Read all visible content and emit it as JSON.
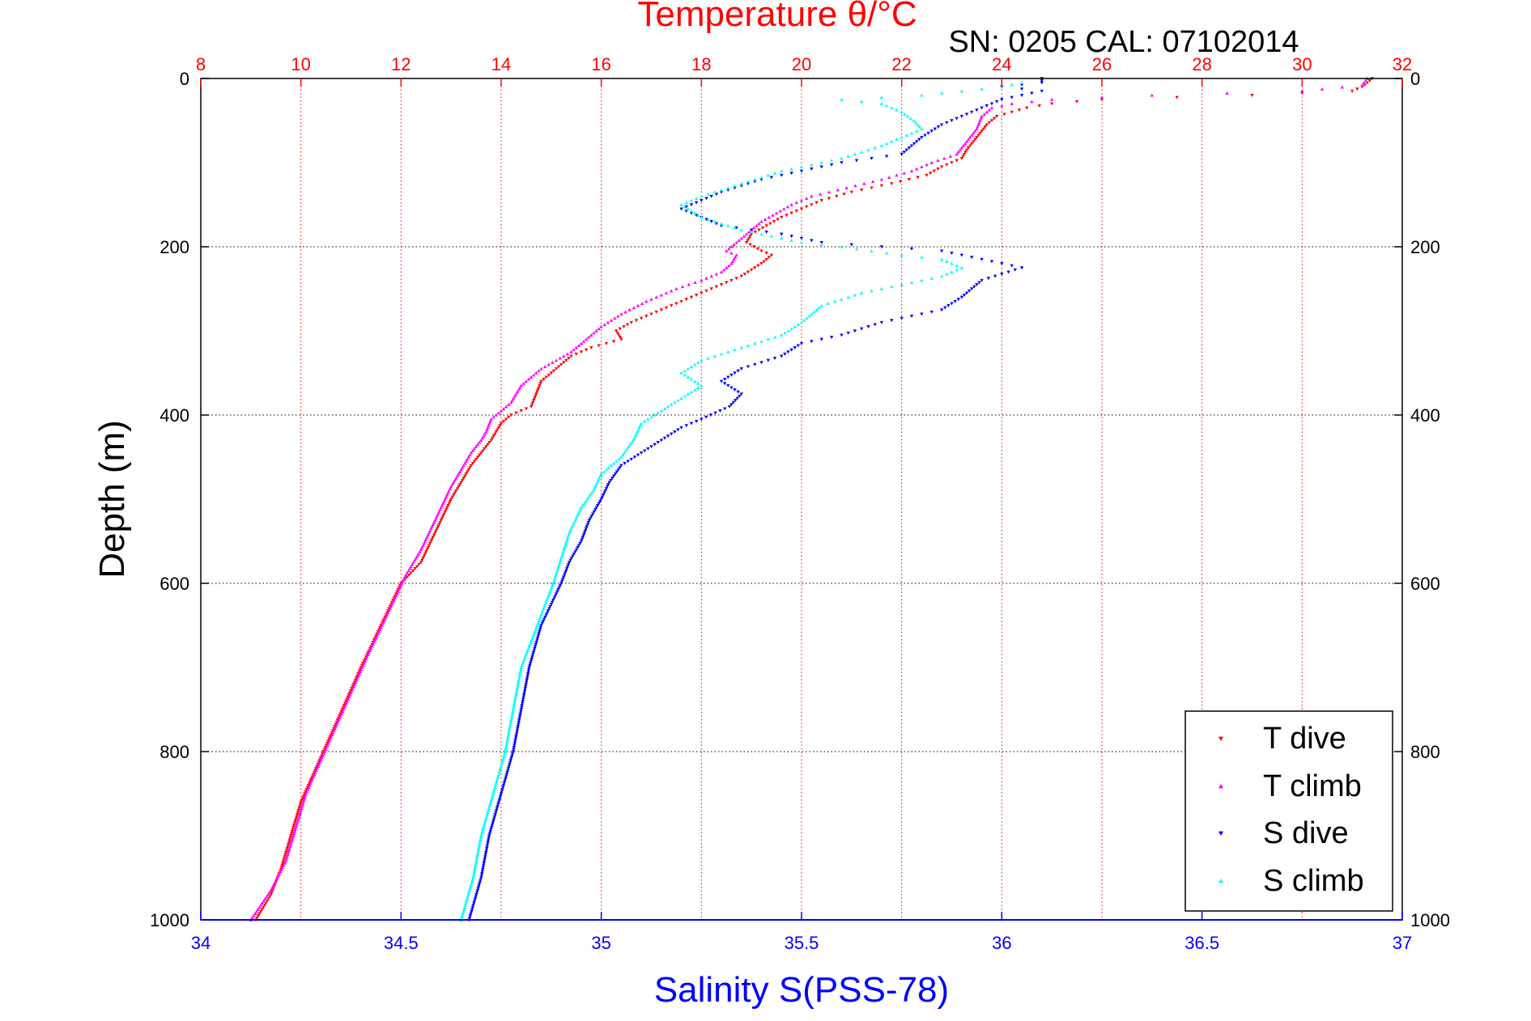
{
  "chart_data": {
    "type": "scatter",
    "title": "Temperature θ/°C",
    "subtitle": "SN: 0205  CAL: 07102014",
    "ylabel": "Depth (m)",
    "xlabel_bottom": "Salinity S(PSS-78)",
    "xlabel_top": "Temperature θ/°C",
    "y_reversed": true,
    "ylim": [
      0,
      1000
    ],
    "y_ticks": [
      0,
      200,
      400,
      600,
      800,
      1000
    ],
    "x_top": {
      "lim": [
        8,
        32
      ],
      "ticks": [
        8,
        10,
        12,
        14,
        16,
        18,
        20,
        22,
        24,
        26,
        28,
        30,
        32
      ],
      "color": "#ff0000"
    },
    "x_bottom": {
      "lim": [
        34,
        37
      ],
      "ticks": [
        "34",
        "34.5",
        "35",
        "35.5",
        "36",
        "36.5",
        "37"
      ],
      "color": "#0000ff"
    },
    "grid": true,
    "legend_position": "bottom-right",
    "series": [
      {
        "name": "T dive",
        "axis": "top",
        "color": "#ff0000",
        "marker": "triangle-down",
        "points": [
          [
            31.4,
            0
          ],
          [
            31.3,
            5
          ],
          [
            31.2,
            10
          ],
          [
            31.0,
            15
          ],
          [
            29.0,
            20
          ],
          [
            26.0,
            25
          ],
          [
            25.0,
            30
          ],
          [
            24.5,
            35
          ],
          [
            24.2,
            40
          ],
          [
            23.9,
            45
          ],
          [
            23.7,
            55
          ],
          [
            23.5,
            70
          ],
          [
            23.3,
            85
          ],
          [
            23.2,
            95
          ],
          [
            22.8,
            105
          ],
          [
            22.5,
            115
          ],
          [
            21.8,
            125
          ],
          [
            21.0,
            135
          ],
          [
            20.4,
            145
          ],
          [
            20.0,
            155
          ],
          [
            19.6,
            165
          ],
          [
            19.3,
            175
          ],
          [
            19.0,
            185
          ],
          [
            18.9,
            195
          ],
          [
            19.2,
            205
          ],
          [
            19.4,
            210
          ],
          [
            19.2,
            220
          ],
          [
            18.8,
            235
          ],
          [
            18.2,
            250
          ],
          [
            17.8,
            260
          ],
          [
            17.2,
            275
          ],
          [
            16.6,
            290
          ],
          [
            16.3,
            300
          ],
          [
            16.4,
            310
          ],
          [
            15.8,
            320
          ],
          [
            15.4,
            330
          ],
          [
            15.2,
            340
          ],
          [
            15.0,
            350
          ],
          [
            14.8,
            360
          ],
          [
            14.7,
            375
          ],
          [
            14.6,
            390
          ],
          [
            14.2,
            400
          ],
          [
            14.0,
            410
          ],
          [
            13.9,
            420
          ],
          [
            13.8,
            430
          ],
          [
            13.6,
            445
          ],
          [
            13.4,
            460
          ],
          [
            13.2,
            480
          ],
          [
            13.0,
            500
          ],
          [
            12.8,
            525
          ],
          [
            12.6,
            550
          ],
          [
            12.4,
            575
          ],
          [
            12.0,
            600
          ],
          [
            11.6,
            650
          ],
          [
            11.2,
            700
          ],
          [
            10.9,
            740
          ],
          [
            10.6,
            780
          ],
          [
            10.3,
            820
          ],
          [
            10.0,
            860
          ],
          [
            9.8,
            900
          ],
          [
            9.6,
            940
          ],
          [
            9.4,
            970
          ],
          [
            9.1,
            1000
          ]
        ]
      },
      {
        "name": "T climb",
        "axis": "top",
        "color": "#ff00ff",
        "marker": "triangle-up",
        "points": [
          [
            31.3,
            0
          ],
          [
            31.2,
            8
          ],
          [
            30.0,
            15
          ],
          [
            27.0,
            20
          ],
          [
            25.0,
            25
          ],
          [
            24.2,
            30
          ],
          [
            23.8,
            35
          ],
          [
            23.6,
            45
          ],
          [
            23.5,
            60
          ],
          [
            23.3,
            75
          ],
          [
            23.1,
            90
          ],
          [
            22.6,
            100
          ],
          [
            22.2,
            110
          ],
          [
            21.6,
            120
          ],
          [
            20.9,
            130
          ],
          [
            20.2,
            140
          ],
          [
            19.8,
            150
          ],
          [
            19.5,
            160
          ],
          [
            19.2,
            170
          ],
          [
            19.0,
            180
          ],
          [
            18.8,
            190
          ],
          [
            18.6,
            200
          ],
          [
            18.5,
            205
          ],
          [
            18.7,
            210
          ],
          [
            18.6,
            220
          ],
          [
            18.4,
            230
          ],
          [
            18.0,
            240
          ],
          [
            17.5,
            250
          ],
          [
            16.9,
            265
          ],
          [
            16.4,
            280
          ],
          [
            16.0,
            295
          ],
          [
            15.8,
            305
          ],
          [
            15.6,
            315
          ],
          [
            15.4,
            325
          ],
          [
            15.1,
            335
          ],
          [
            14.8,
            345
          ],
          [
            14.6,
            355
          ],
          [
            14.4,
            365
          ],
          [
            14.3,
            375
          ],
          [
            14.2,
            385
          ],
          [
            14.0,
            395
          ],
          [
            13.8,
            405
          ],
          [
            13.7,
            420
          ],
          [
            13.6,
            430
          ],
          [
            13.4,
            445
          ],
          [
            13.2,
            465
          ],
          [
            13.0,
            485
          ],
          [
            12.8,
            510
          ],
          [
            12.6,
            535
          ],
          [
            12.4,
            560
          ],
          [
            12.1,
            590
          ],
          [
            11.7,
            640
          ],
          [
            11.3,
            690
          ],
          [
            11.0,
            730
          ],
          [
            10.7,
            770
          ],
          [
            10.4,
            810
          ],
          [
            10.1,
            850
          ],
          [
            9.9,
            890
          ],
          [
            9.7,
            930
          ],
          [
            9.4,
            965
          ],
          [
            9.0,
            1000
          ]
        ]
      },
      {
        "name": "S dive",
        "axis": "bottom",
        "color": "#0000ff",
        "marker": "triangle-down",
        "points": [
          [
            36.1,
            0
          ],
          [
            36.1,
            5
          ],
          [
            36.0,
            10
          ],
          [
            36.1,
            15
          ],
          [
            36.05,
            20
          ],
          [
            36.0,
            25
          ],
          [
            35.95,
            35
          ],
          [
            35.9,
            45
          ],
          [
            35.85,
            55
          ],
          [
            35.8,
            70
          ],
          [
            35.75,
            90
          ],
          [
            35.6,
            100
          ],
          [
            35.5,
            110
          ],
          [
            35.4,
            120
          ],
          [
            35.3,
            135
          ],
          [
            35.25,
            145
          ],
          [
            35.2,
            155
          ],
          [
            35.25,
            165
          ],
          [
            35.3,
            175
          ],
          [
            35.45,
            185
          ],
          [
            35.55,
            195
          ],
          [
            35.7,
            200
          ],
          [
            35.85,
            205
          ],
          [
            35.95,
            215
          ],
          [
            36.05,
            225
          ],
          [
            35.95,
            240
          ],
          [
            35.9,
            260
          ],
          [
            35.85,
            275
          ],
          [
            35.7,
            290
          ],
          [
            35.6,
            305
          ],
          [
            35.5,
            315
          ],
          [
            35.45,
            330
          ],
          [
            35.35,
            345
          ],
          [
            35.3,
            360
          ],
          [
            35.35,
            375
          ],
          [
            35.32,
            390
          ],
          [
            35.25,
            405
          ],
          [
            35.2,
            415
          ],
          [
            35.15,
            430
          ],
          [
            35.1,
            445
          ],
          [
            35.05,
            460
          ],
          [
            35.02,
            480
          ],
          [
            35.0,
            500
          ],
          [
            34.97,
            525
          ],
          [
            34.95,
            550
          ],
          [
            34.92,
            575
          ],
          [
            34.9,
            600
          ],
          [
            34.85,
            650
          ],
          [
            34.82,
            700
          ],
          [
            34.8,
            750
          ],
          [
            34.78,
            800
          ],
          [
            34.75,
            850
          ],
          [
            34.72,
            900
          ],
          [
            34.7,
            950
          ],
          [
            34.67,
            1000
          ]
        ]
      },
      {
        "name": "S climb",
        "axis": "bottom",
        "color": "#00ffff",
        "marker": "triangle-up",
        "points": [
          [
            36.05,
            5
          ],
          [
            36.0,
            10
          ],
          [
            35.9,
            15
          ],
          [
            35.8,
            20
          ],
          [
            35.6,
            25
          ],
          [
            35.7,
            30
          ],
          [
            35.75,
            40
          ],
          [
            35.78,
            50
          ],
          [
            35.8,
            60
          ],
          [
            35.75,
            70
          ],
          [
            35.7,
            80
          ],
          [
            35.6,
            95
          ],
          [
            35.45,
            110
          ],
          [
            35.35,
            125
          ],
          [
            35.25,
            140
          ],
          [
            35.2,
            150
          ],
          [
            35.25,
            165
          ],
          [
            35.35,
            180
          ],
          [
            35.5,
            195
          ],
          [
            35.6,
            200
          ],
          [
            35.75,
            210
          ],
          [
            35.85,
            215
          ],
          [
            35.9,
            225
          ],
          [
            35.85,
            235
          ],
          [
            35.75,
            245
          ],
          [
            35.65,
            255
          ],
          [
            35.55,
            270
          ],
          [
            35.5,
            290
          ],
          [
            35.45,
            305
          ],
          [
            35.35,
            320
          ],
          [
            35.25,
            335
          ],
          [
            35.2,
            350
          ],
          [
            35.25,
            365
          ],
          [
            35.2,
            380
          ],
          [
            35.15,
            395
          ],
          [
            35.1,
            410
          ],
          [
            35.08,
            430
          ],
          [
            35.05,
            450
          ],
          [
            35.0,
            470
          ],
          [
            34.98,
            490
          ],
          [
            34.95,
            510
          ],
          [
            34.92,
            540
          ],
          [
            34.9,
            570
          ],
          [
            34.88,
            600
          ],
          [
            34.84,
            650
          ],
          [
            34.8,
            700
          ],
          [
            34.78,
            750
          ],
          [
            34.76,
            800
          ],
          [
            34.73,
            850
          ],
          [
            34.7,
            900
          ],
          [
            34.68,
            950
          ],
          [
            34.65,
            1000
          ]
        ]
      }
    ]
  }
}
